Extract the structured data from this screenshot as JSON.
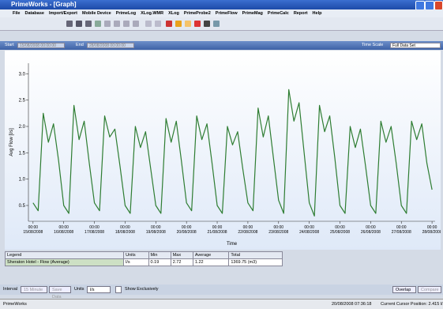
{
  "window": {
    "title": "PrimeWorks - [Graph]"
  },
  "menu": [
    "File",
    "Database",
    "Import/Export",
    "Mobile Device",
    "PrimeLog",
    "XLog.WMR",
    "XLog",
    "PrimeProbe2",
    "PrimeFlow",
    "PrimeMag",
    "PrimeCalc",
    "Report",
    "Help"
  ],
  "date_bar": {
    "start_label": "Start",
    "start": "15/08/2008 00:00:00",
    "end_label": "End",
    "end": "28/08/2008 00:00:00",
    "time_scale_label": "Time Scale",
    "time_scale": "Full Data Set"
  },
  "chart_data": {
    "type": "line",
    "ylabel": "Avg Flow [l/s]",
    "xlabel": "Time",
    "xlim": [
      -0.15,
      13.1
    ],
    "ylim": [
      0.2,
      3.2
    ],
    "yticks": [
      0.5,
      {
        "value": 1,
        "label": "1.0"
      },
      1.5,
      {
        "value": 2,
        "label": "2.0"
      },
      2.5,
      {
        "value": 3,
        "label": "3.0"
      }
    ],
    "xticks": [
      {
        "value": 0,
        "label": "00:00 15/08/2008"
      },
      {
        "value": 1,
        "label": "00:00 16/08/2008"
      },
      {
        "value": 2,
        "label": "00:00 17/08/2008"
      },
      {
        "value": 3,
        "label": "00:00 18/08/2008"
      },
      {
        "value": 4,
        "label": "00:00 19/08/2008"
      },
      {
        "value": 5,
        "label": "00:00 20/08/2008"
      },
      {
        "value": 6,
        "label": "00:00 21/08/2008"
      },
      {
        "value": 7,
        "label": "00:00 22/08/2008"
      },
      {
        "value": 8,
        "label": "00:00 23/08/2008"
      },
      {
        "value": 9,
        "label": "00:00 24/08/2008"
      },
      {
        "value": 10,
        "label": "00:00 25/08/2008"
      },
      {
        "value": 11,
        "label": "00:00 26/08/2008"
      },
      {
        "value": 12,
        "label": "00:00 27/08/2008"
      },
      {
        "value": 13,
        "label": "00:00 28/08/2008"
      }
    ],
    "x": [
      0,
      0.167,
      0.333,
      0.5,
      0.667,
      0.833,
      1,
      1.167,
      1.333,
      1.5,
      1.667,
      1.833,
      2,
      2.167,
      2.333,
      2.5,
      2.667,
      2.833,
      3,
      3.167,
      3.333,
      3.5,
      3.667,
      3.833,
      4,
      4.167,
      4.333,
      4.5,
      4.667,
      4.833,
      5,
      5.167,
      5.333,
      5.5,
      5.667,
      5.833,
      6,
      6.167,
      6.333,
      6.5,
      6.667,
      6.833,
      7,
      7.167,
      7.333,
      7.5,
      7.667,
      7.833,
      8,
      8.167,
      8.333,
      8.5,
      8.667,
      8.833,
      9,
      9.167,
      9.333,
      9.5,
      9.667,
      9.833,
      10,
      10.167,
      10.333,
      10.5,
      10.667,
      10.833,
      11,
      11.167,
      11.333,
      11.5,
      11.667,
      11.833,
      12,
      12.167,
      12.333,
      12.5,
      12.667,
      12.833,
      13
    ],
    "series": [
      {
        "name": "Sheraton Hotel - Flow (Average)",
        "color": "#2e7d32",
        "values": [
          0.55,
          0.4,
          2.25,
          1.7,
          2.05,
          1.35,
          0.5,
          0.35,
          2.4,
          1.75,
          2.1,
          1.3,
          0.55,
          0.4,
          2.2,
          1.8,
          1.95,
          1.25,
          0.5,
          0.35,
          2.0,
          1.6,
          1.9,
          1.2,
          0.5,
          0.35,
          2.15,
          1.7,
          2.1,
          1.35,
          0.55,
          0.4,
          2.2,
          1.75,
          2.05,
          1.3,
          0.5,
          0.35,
          2.0,
          1.65,
          1.9,
          1.2,
          0.55,
          0.4,
          2.35,
          1.8,
          2.2,
          1.4,
          0.6,
          0.35,
          2.7,
          2.1,
          2.45,
          1.5,
          0.55,
          0.3,
          2.4,
          1.9,
          2.2,
          1.4,
          0.5,
          0.35,
          2.0,
          1.6,
          1.95,
          1.25,
          0.5,
          0.35,
          2.1,
          1.7,
          2.0,
          1.3,
          0.5,
          0.35,
          2.1,
          1.75,
          2.05,
          1.3,
          0.8
        ]
      }
    ]
  },
  "legend_table": {
    "headers": [
      "Legend",
      "Units",
      "Min",
      "Max",
      "Average",
      "Total"
    ],
    "row": [
      "l/s",
      "0.19",
      "2.72",
      "1.22",
      "1369.75 (m3)"
    ]
  },
  "bottom_bar": {
    "interval_label": "Interval",
    "interval": "15 Minute",
    "save": "Save Data",
    "units_label": "Units",
    "units": "l/s",
    "show_exclusively": "Show Exclusively",
    "overlap": "Overlap",
    "compare": "Compare"
  },
  "status": {
    "app": "PrimeWorks",
    "datetime": "20/08/2008 07:36:18",
    "cursor": "Current Cursor Position: 2.415 l/s"
  }
}
